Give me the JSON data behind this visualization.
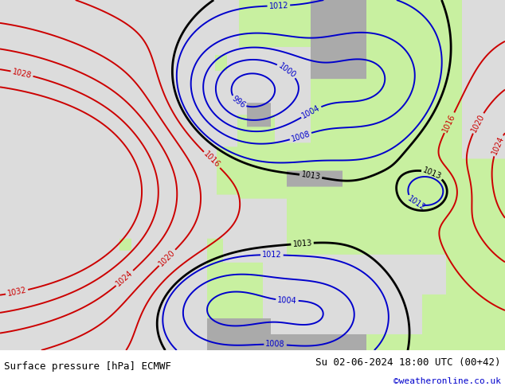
{
  "bottom_left_text": "Surface pressure [hPa] ECMWF",
  "bottom_right_text": "Su 02-06-2024 18:00 UTC (00+42)",
  "copyright_text": "©weatheronline.co.uk",
  "bg_land_color": [
    200,
    240,
    160
  ],
  "bg_ocean_color": [
    220,
    220,
    220
  ],
  "bg_highland_color": [
    170,
    170,
    170
  ],
  "isobar_low_color": "#0000cc",
  "isobar_high_color": "#cc0000",
  "isobar_1013_color": "#000000",
  "fig_width": 6.34,
  "fig_height": 4.9,
  "dpi": 100,
  "bottom_bar_color": "#d0d0d0",
  "text_color": "#000000",
  "copyright_color": "#0000cc",
  "font_size_bottom": 9,
  "font_size_copyright": 8,
  "pressure_levels_blue": [
    996,
    1000,
    1004,
    1008,
    1012
  ],
  "pressure_levels_red": [
    1016,
    1020,
    1024,
    1028,
    1032
  ],
  "pressure_levels_black": [
    1013
  ]
}
